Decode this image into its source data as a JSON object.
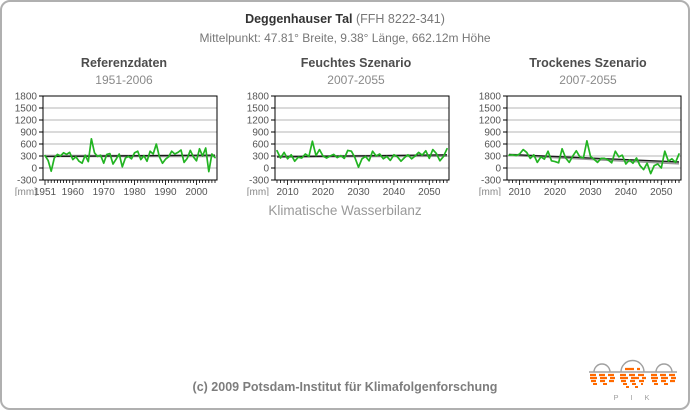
{
  "colors": {
    "line_green": "#22b422",
    "trend_black": "#1a1a1a",
    "mean_gray": "#999999",
    "grid_gray": "#6e6e6e",
    "axis_black": "#000000",
    "tick_text": "#555555",
    "unit_text": "#888888",
    "logo_orange": "#ff6a00",
    "logo_gray": "#a0a0a0",
    "border_gray": "#b0b0b0"
  },
  "header": {
    "title_bold": "Deggenhauser Tal",
    "title_rest": " (FFH 8222-341)",
    "subtitle": "Mittelpunkt: 47.81° Breite, 9.38° Länge, 662.12m Höhe"
  },
  "axis_caption": "Klimatische Wasserbilanz",
  "footer": {
    "copyright": "(c) 2009 Potsdam-Institut für Klimafolgenforschung",
    "logo_text": "P I K"
  },
  "chart_data": [
    {
      "type": "line",
      "title": "Referenzdaten",
      "subtitle": "1951-2006",
      "unit": "[mm]",
      "ylabel": "Klimatische Wasserbilanz [mm]",
      "ylim": [
        -300,
        1800
      ],
      "yticks": [
        -300,
        0,
        300,
        600,
        900,
        1200,
        1500,
        1800
      ],
      "x_range": [
        1951,
        2006
      ],
      "xticks": [
        1951,
        1960,
        1970,
        1980,
        1990,
        2000
      ],
      "grid": true,
      "values": [
        310,
        190,
        -80,
        250,
        340,
        300,
        380,
        340,
        390,
        210,
        280,
        170,
        120,
        320,
        160,
        730,
        380,
        290,
        320,
        120,
        340,
        360,
        100,
        220,
        350,
        30,
        250,
        290,
        230,
        380,
        420,
        210,
        310,
        170,
        420,
        350,
        600,
        280,
        120,
        220,
        280,
        420,
        350,
        390,
        450,
        140,
        240,
        440,
        280,
        180,
        480,
        300,
        500,
        -90,
        350,
        260
      ],
      "mean": {
        "start": 300,
        "end": 300
      },
      "trend": {
        "start": 288,
        "end": 322
      }
    },
    {
      "type": "line",
      "title": "Feuchtes Szenario",
      "subtitle": "2007-2055",
      "unit": "[mm]",
      "ylabel": "Klimatische Wasserbilanz [mm]",
      "ylim": [
        -300,
        1800
      ],
      "yticks": [
        -300,
        0,
        300,
        600,
        900,
        1200,
        1500,
        1800
      ],
      "x_range": [
        2007,
        2055
      ],
      "xticks": [
        2010,
        2020,
        2030,
        2040,
        2050
      ],
      "grid": true,
      "values": [
        430,
        250,
        390,
        230,
        330,
        170,
        270,
        250,
        350,
        290,
        670,
        310,
        460,
        300,
        250,
        300,
        340,
        260,
        310,
        240,
        440,
        420,
        260,
        20,
        230,
        290,
        180,
        420,
        300,
        350,
        230,
        290,
        190,
        330,
        280,
        170,
        260,
        330,
        230,
        300,
        390,
        320,
        430,
        240,
        460,
        360,
        180,
        290,
        480
      ],
      "mean": {
        "start": 288,
        "end": 308
      },
      "trend": {
        "start": 278,
        "end": 330
      }
    },
    {
      "type": "line",
      "title": "Trockenes Szenario",
      "subtitle": "2007-2055",
      "unit": "[mm]",
      "ylabel": "Klimatische Wasserbilanz [mm]",
      "ylim": [
        -300,
        1800
      ],
      "yticks": [
        -300,
        0,
        300,
        600,
        900,
        1200,
        1500,
        1800
      ],
      "x_range": [
        2007,
        2055
      ],
      "xticks": [
        2010,
        2020,
        2030,
        2040,
        2050
      ],
      "grid": true,
      "values": [
        320,
        330,
        310,
        350,
        460,
        390,
        240,
        330,
        140,
        280,
        220,
        420,
        180,
        160,
        130,
        480,
        250,
        140,
        300,
        430,
        280,
        250,
        680,
        290,
        220,
        140,
        240,
        240,
        200,
        130,
        420,
        280,
        320,
        100,
        200,
        120,
        250,
        60,
        -40,
        120,
        -140,
        60,
        100,
        0,
        420,
        170,
        230,
        140,
        350
      ],
      "mean": {
        "start": 330,
        "end": 118
      },
      "trend": {
        "start": 338,
        "end": 152
      }
    }
  ]
}
